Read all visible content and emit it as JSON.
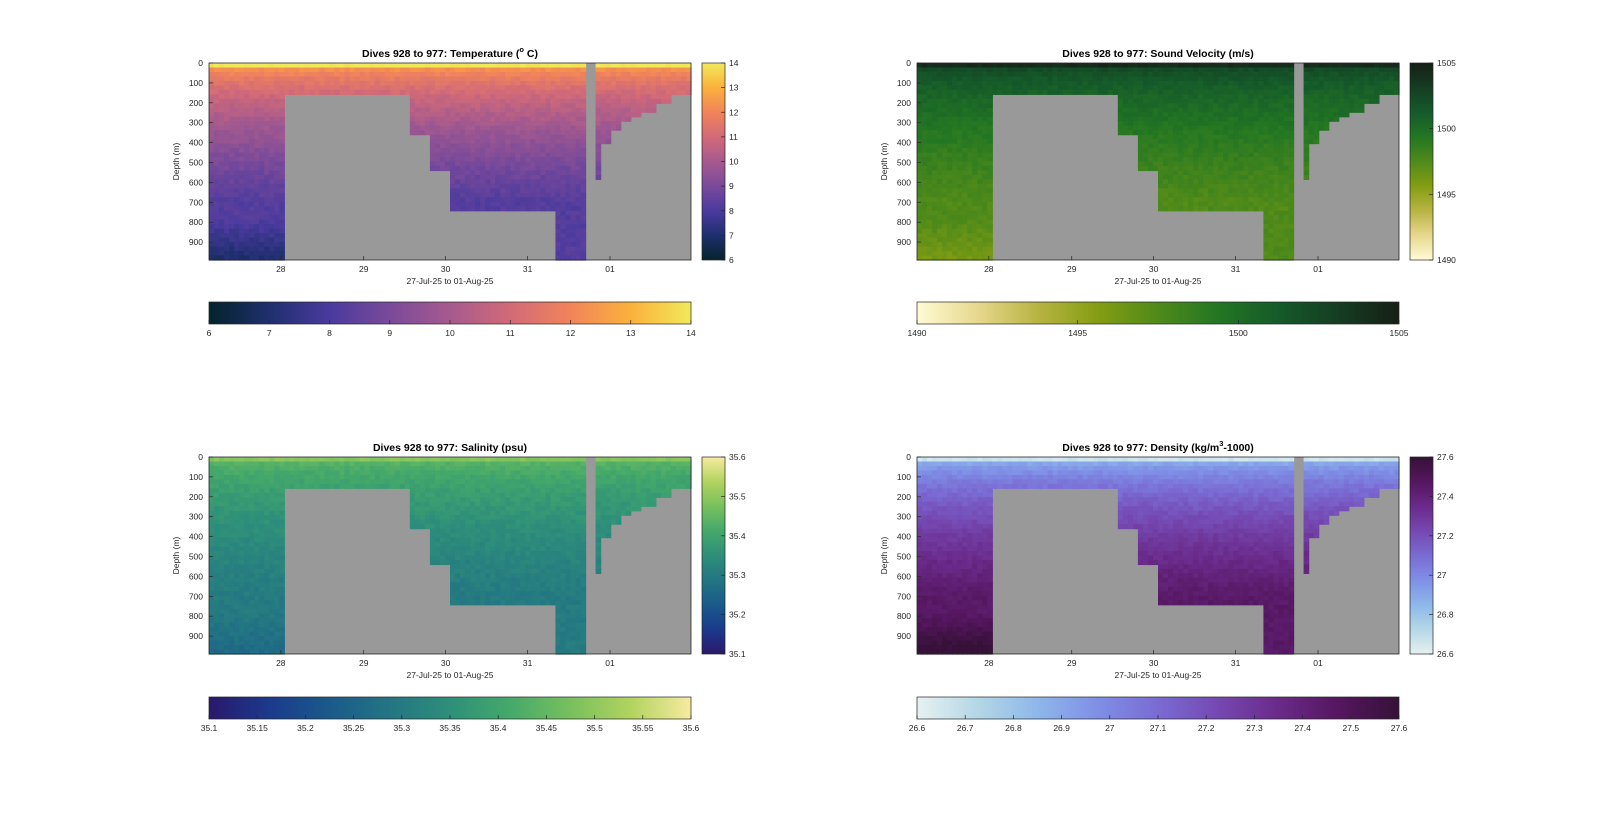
{
  "chart_data": [
    {
      "type": "heatmap",
      "title_prefix": "Dives 928 to 977: Temperature (",
      "title_sup": "o",
      "title_suffix": " C)",
      "xlabel": "27-Jul-25 to 01-Aug-25",
      "ylabel": "Depth (m)",
      "x_ticks": [
        "28",
        "29",
        "30",
        "31",
        "01"
      ],
      "y_ticks": [
        "0",
        "100",
        "200",
        "300",
        "400",
        "500",
        "600",
        "700",
        "800",
        "900"
      ],
      "ylim": [
        0,
        990
      ],
      "y_reversed": true,
      "colormap": "thermal",
      "clim": [
        6,
        14
      ],
      "colorbar_ticks_vertical": [
        "6",
        "7",
        "8",
        "9",
        "10",
        "11",
        "12",
        "13",
        "14"
      ],
      "colorbar_ticks_horizontal": [
        "6",
        "7",
        "8",
        "9",
        "10",
        "11",
        "12",
        "13",
        "14"
      ],
      "surface_value": 13.4,
      "deep_value": 8.2,
      "no_data_color": "#999999"
    },
    {
      "type": "heatmap",
      "title_prefix": "Dives 928 to 977: Sound Velocity (m/s)",
      "title_sup": "",
      "title_suffix": "",
      "xlabel": "27-Jul-25 to 01-Aug-25",
      "ylabel": "Depth (m)",
      "x_ticks": [
        "28",
        "29",
        "30",
        "31",
        "01"
      ],
      "y_ticks": [
        "0",
        "100",
        "200",
        "300",
        "400",
        "500",
        "600",
        "700",
        "800",
        "900"
      ],
      "ylim": [
        0,
        990
      ],
      "y_reversed": true,
      "colormap": "speed",
      "clim": [
        1490,
        1505
      ],
      "colorbar_ticks_vertical": [
        "1490",
        "1495",
        "1500",
        "1505"
      ],
      "colorbar_ticks_horizontal": [
        "1490",
        "1495",
        "1500",
        "1505"
      ],
      "surface_value": 1503.5,
      "deep_value": 1497.5,
      "no_data_color": "#999999"
    },
    {
      "type": "heatmap",
      "title_prefix": "Dives 928 to 977: Salinity (psu)",
      "title_sup": "",
      "title_suffix": "",
      "xlabel": "27-Jul-25 to 01-Aug-25",
      "ylabel": "Depth (m)",
      "x_ticks": [
        "28",
        "29",
        "30",
        "31",
        "01"
      ],
      "y_ticks": [
        "0",
        "100",
        "200",
        "300",
        "400",
        "500",
        "600",
        "700",
        "800",
        "900"
      ],
      "ylim": [
        0,
        990
      ],
      "y_reversed": true,
      "colormap": "haline",
      "clim": [
        35.1,
        35.6
      ],
      "colorbar_ticks_vertical": [
        "35.1",
        "35.2",
        "35.3",
        "35.4",
        "35.5",
        "35.6"
      ],
      "colorbar_ticks_horizontal": [
        "35.1",
        "35.15",
        "35.2",
        "35.25",
        "35.3",
        "35.35",
        "35.4",
        "35.45",
        "35.5",
        "35.55",
        "35.6"
      ],
      "surface_value": 35.47,
      "deep_value": 35.3,
      "no_data_color": "#999999"
    },
    {
      "type": "heatmap",
      "title_prefix": "Dives 928 to 977: Density (kg/m",
      "title_sup": "3",
      "title_suffix": "-1000)",
      "xlabel": "27-Jul-25 to 01-Aug-25",
      "ylabel": "Depth (m)",
      "x_ticks": [
        "28",
        "29",
        "30",
        "31",
        "01"
      ],
      "y_ticks": [
        "0",
        "100",
        "200",
        "300",
        "400",
        "500",
        "600",
        "700",
        "800",
        "900"
      ],
      "ylim": [
        0,
        990
      ],
      "y_reversed": true,
      "colormap": "dense",
      "clim": [
        26.6,
        27.6
      ],
      "colorbar_ticks_vertical": [
        "26.6",
        "26.8",
        "27",
        "27.2",
        "27.4",
        "27.6"
      ],
      "colorbar_ticks_horizontal": [
        "26.6",
        "26.7",
        "26.8",
        "26.9",
        "27",
        "27.1",
        "27.2",
        "27.3",
        "27.4",
        "27.5",
        "27.6"
      ],
      "surface_value": 26.75,
      "deep_value": 27.45,
      "no_data_color": "#999999"
    }
  ],
  "colormaps": {
    "thermal": [
      "#04232b",
      "#1f2f6e",
      "#4a3a9e",
      "#7a4a9a",
      "#a65a8e",
      "#d26a78",
      "#f1845a",
      "#fbb13c",
      "#f1e95a"
    ],
    "speed": [
      "#fffbd4",
      "#e6d88e",
      "#b8b442",
      "#849d12",
      "#4f8a1a",
      "#237623",
      "#155a2a",
      "#153d22",
      "#151f16"
    ],
    "haline": [
      "#2a186c",
      "#1b3a8c",
      "#1a5a8a",
      "#237583",
      "#2e8f7a",
      "#45a96a",
      "#78c05e",
      "#b2d35f",
      "#f7eba0"
    ],
    "dense": [
      "#e6f1f1",
      "#b4d7e6",
      "#8eb7ea",
      "#7f8fe6",
      "#7a6bd3",
      "#7548b1",
      "#6a2a8a",
      "#55165f",
      "#361138"
    ]
  }
}
